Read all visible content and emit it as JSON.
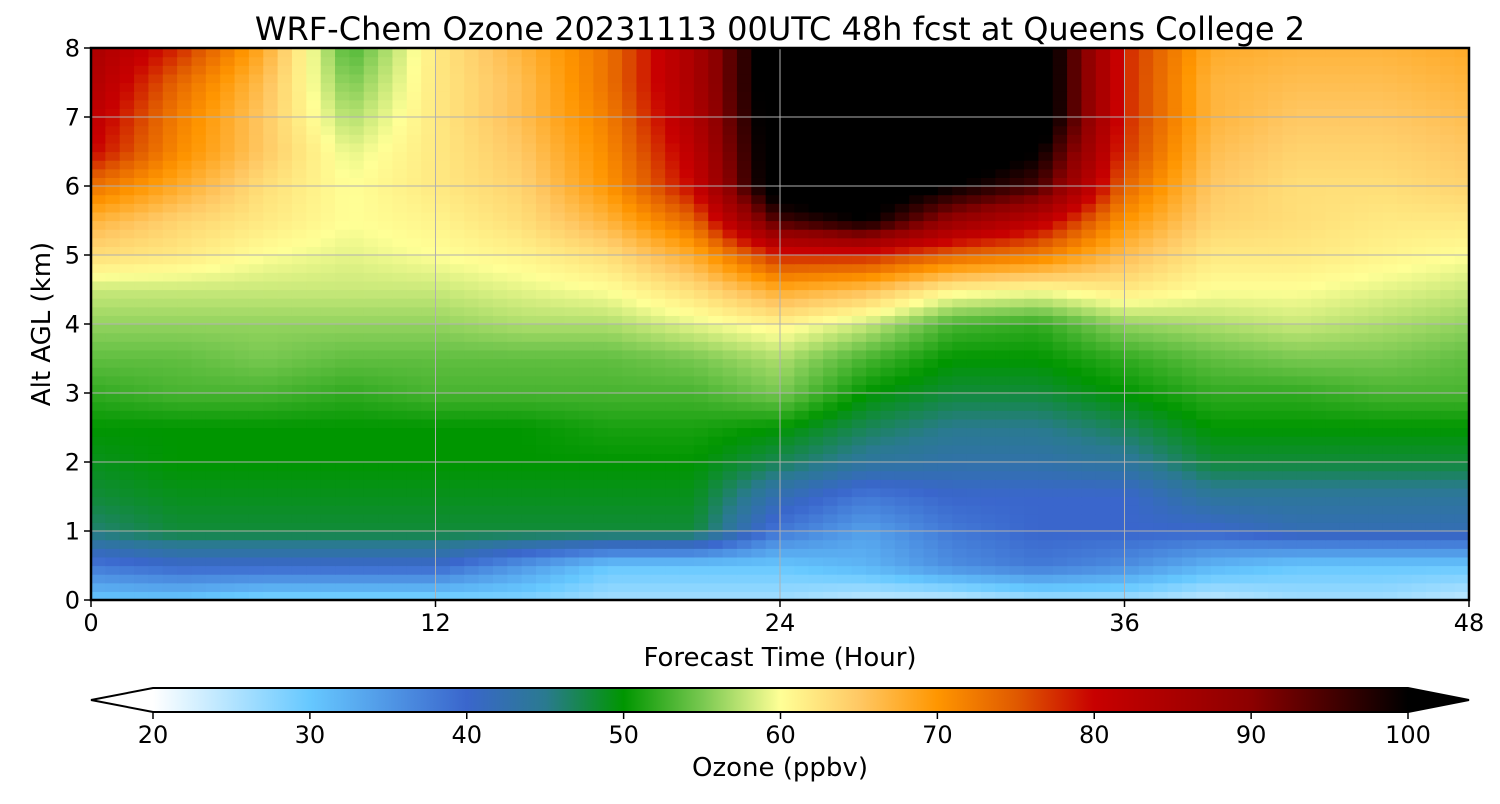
{
  "chart_data": {
    "type": "heatmap",
    "title": "WRF-Chem Ozone  20231113 00UTC 48h fcst at Queens College 2",
    "xlabel": "Forecast Time (Hour)",
    "ylabel": "Alt AGL (km)",
    "xlim": [
      0,
      48
    ],
    "ylim": [
      0,
      8
    ],
    "x_ticks": [
      "0",
      "12",
      "24",
      "36",
      "48"
    ],
    "y_ticks": [
      "0",
      "1",
      "2",
      "3",
      "4",
      "5",
      "6",
      "7",
      "8"
    ],
    "grid": true,
    "colorbar": {
      "label": "Ozone  (ppbv)",
      "min": 20,
      "max": 100,
      "ticks": [
        "20",
        "30",
        "40",
        "50",
        "60",
        "70",
        "80",
        "90",
        "100"
      ],
      "extend": "both",
      "colormap_stops": [
        {
          "value": 20,
          "color": "#ffffff"
        },
        {
          "value": 30,
          "color": "#66c8ff"
        },
        {
          "value": 40,
          "color": "#3a66cc"
        },
        {
          "value": 45,
          "color": "#2a7a90"
        },
        {
          "value": 50,
          "color": "#009600"
        },
        {
          "value": 55,
          "color": "#78c850"
        },
        {
          "value": 60,
          "color": "#ffff96"
        },
        {
          "value": 65,
          "color": "#ffc864"
        },
        {
          "value": 70,
          "color": "#ff9600"
        },
        {
          "value": 75,
          "color": "#e05a00"
        },
        {
          "value": 80,
          "color": "#c80000"
        },
        {
          "value": 90,
          "color": "#8c0000"
        },
        {
          "value": 100,
          "color": "#000000"
        }
      ]
    },
    "heights_km": [
      0,
      0.5,
      1,
      1.5,
      2,
      2.5,
      3,
      3.5,
      4,
      4.5,
      5,
      5.5,
      6,
      6.5,
      7,
      7.5,
      8
    ],
    "times_h": [
      0,
      3,
      6,
      9,
      12,
      15,
      18,
      21,
      24,
      27,
      30,
      33,
      36,
      39,
      42,
      45,
      48
    ],
    "ozone_ppbv": [
      [
        30,
        30,
        28,
        28,
        28,
        28,
        26,
        26,
        26,
        24,
        24,
        26,
        26,
        24,
        26,
        26,
        24
      ],
      [
        38,
        40,
        40,
        40,
        40,
        35,
        30,
        30,
        30,
        32,
        36,
        38,
        36,
        32,
        30,
        30,
        30
      ],
      [
        46,
        48,
        48,
        48,
        48,
        48,
        48,
        48,
        38,
        34,
        38,
        40,
        40,
        40,
        42,
        42,
        42
      ],
      [
        48,
        49,
        49,
        49,
        49,
        49,
        49,
        49,
        42,
        38,
        40,
        40,
        40,
        44,
        44,
        44,
        44
      ],
      [
        49,
        50,
        50,
        50,
        50,
        50,
        50,
        50,
        47,
        44,
        43,
        43,
        44,
        48,
        48,
        48,
        48
      ],
      [
        50,
        50,
        50,
        50,
        50,
        50,
        51,
        51,
        50,
        47,
        45,
        45,
        47,
        50,
        50,
        50,
        50
      ],
      [
        52,
        53,
        53,
        52,
        53,
        53,
        53,
        53,
        55,
        50,
        48,
        48,
        50,
        52,
        52,
        53,
        53
      ],
      [
        54,
        54,
        55,
        54,
        54,
        54,
        54,
        55,
        57,
        53,
        50,
        50,
        52,
        54,
        55,
        55,
        54
      ],
      [
        56,
        56,
        56,
        56,
        56,
        57,
        57,
        59,
        61,
        58,
        53,
        52,
        56,
        57,
        58,
        57,
        56
      ],
      [
        58,
        58,
        58,
        58,
        58,
        59,
        60,
        63,
        68,
        66,
        61,
        60,
        62,
        60,
        60,
        59,
        58
      ],
      [
        63,
        62,
        60,
        59,
        60,
        61,
        63,
        68,
        78,
        78,
        74,
        72,
        66,
        62,
        62,
        61,
        60
      ],
      [
        67,
        64,
        62,
        60,
        61,
        63,
        67,
        74,
        95,
        100,
        88,
        82,
        70,
        64,
        63,
        62,
        62
      ],
      [
        73,
        68,
        63,
        60,
        62,
        64,
        70,
        80,
        105,
        105,
        100,
        95,
        74,
        65,
        63,
        63,
        64
      ],
      [
        80,
        71,
        65,
        59,
        62,
        65,
        71,
        82,
        105,
        105,
        105,
        100,
        77,
        66,
        64,
        64,
        65
      ],
      [
        82,
        72,
        65,
        57,
        62,
        66,
        72,
        84,
        105,
        105,
        105,
        105,
        78,
        67,
        65,
        65,
        66
      ],
      [
        84,
        74,
        66,
        55,
        62,
        66,
        73,
        85,
        105,
        105,
        105,
        105,
        78,
        67,
        66,
        66,
        67
      ],
      [
        85,
        78,
        68,
        53,
        62,
        67,
        73,
        85,
        105,
        105,
        105,
        105,
        78,
        68,
        67,
        67,
        68
      ]
    ]
  }
}
